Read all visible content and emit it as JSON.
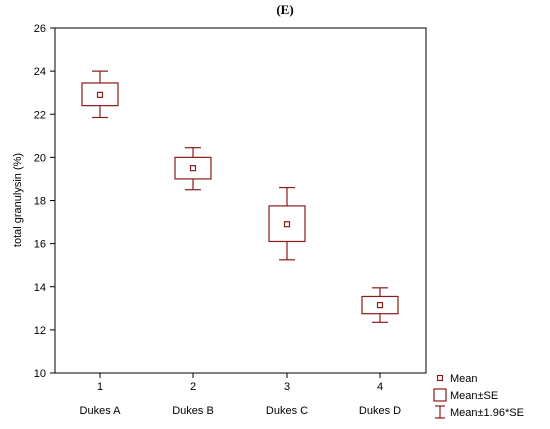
{
  "chart_data": {
    "type": "box",
    "panel_label": "(E)",
    "ylabel": "total granulysin (%)",
    "xlabel": "",
    "ylim": [
      10,
      26
    ],
    "yticks": [
      10,
      12,
      14,
      16,
      18,
      20,
      22,
      24,
      26
    ],
    "grid": false,
    "legend_position": "bottom-right",
    "categories": [
      "1",
      "2",
      "3",
      "4"
    ],
    "group_labels": [
      "Dukes A",
      "Dukes B",
      "Dukes C",
      "Dukes D"
    ],
    "series": [
      {
        "mean": [
          22.9,
          19.5,
          16.9,
          13.15
        ],
        "se_low": [
          22.4,
          19.0,
          16.1,
          12.75
        ],
        "se_high": [
          23.45,
          20.0,
          17.75,
          13.55
        ],
        "ci_low": [
          21.85,
          18.5,
          15.25,
          12.35
        ],
        "ci_high": [
          24.0,
          20.45,
          18.6,
          13.95
        ]
      }
    ],
    "legend": [
      {
        "label": "Mean",
        "symbol": "mean-marker"
      },
      {
        "label": "Mean±SE",
        "symbol": "se-box"
      },
      {
        "label": "Mean±1.96*SE",
        "symbol": "whisker"
      }
    ],
    "colors": {
      "series": "#8b1a1a",
      "axis": "#000000"
    }
  }
}
